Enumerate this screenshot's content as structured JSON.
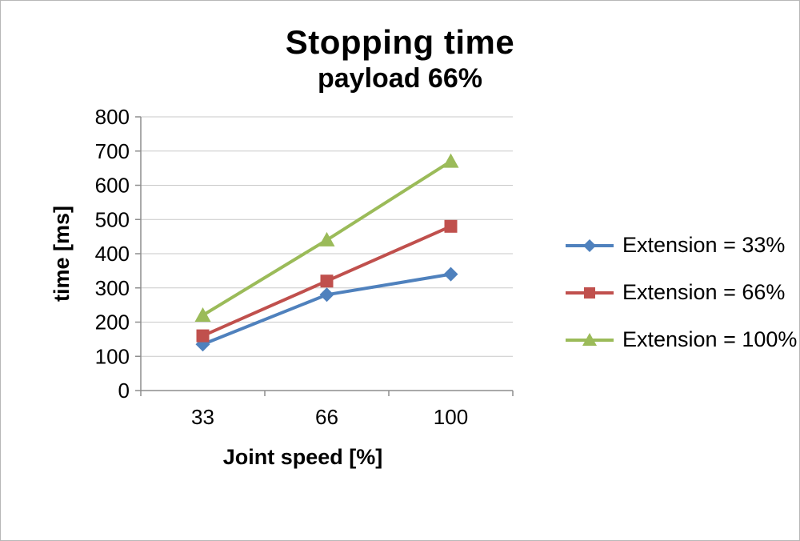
{
  "chart_data": {
    "type": "line",
    "title": "Stopping time",
    "subtitle": "payload 66%",
    "xlabel": "Joint speed [%]",
    "ylabel": "time [ms]",
    "categories": [
      "33",
      "66",
      "100"
    ],
    "ylim": [
      0,
      800
    ],
    "ytick_step": 100,
    "grid": true,
    "legend_position": "right",
    "colors": {
      "gridline": "#c9c9c9",
      "axis": "#8e8e8e",
      "text": "#000000"
    },
    "series": [
      {
        "name": "Extension = 33%",
        "color": "#4F81BD",
        "marker": "diamond",
        "values": [
          135,
          280,
          340
        ]
      },
      {
        "name": "Extension = 66%",
        "color": "#C0504D",
        "marker": "square",
        "values": [
          160,
          320,
          480
        ]
      },
      {
        "name": "Extension = 100%",
        "color": "#9BBB59",
        "marker": "triangle",
        "values": [
          220,
          440,
          670
        ]
      }
    ]
  }
}
